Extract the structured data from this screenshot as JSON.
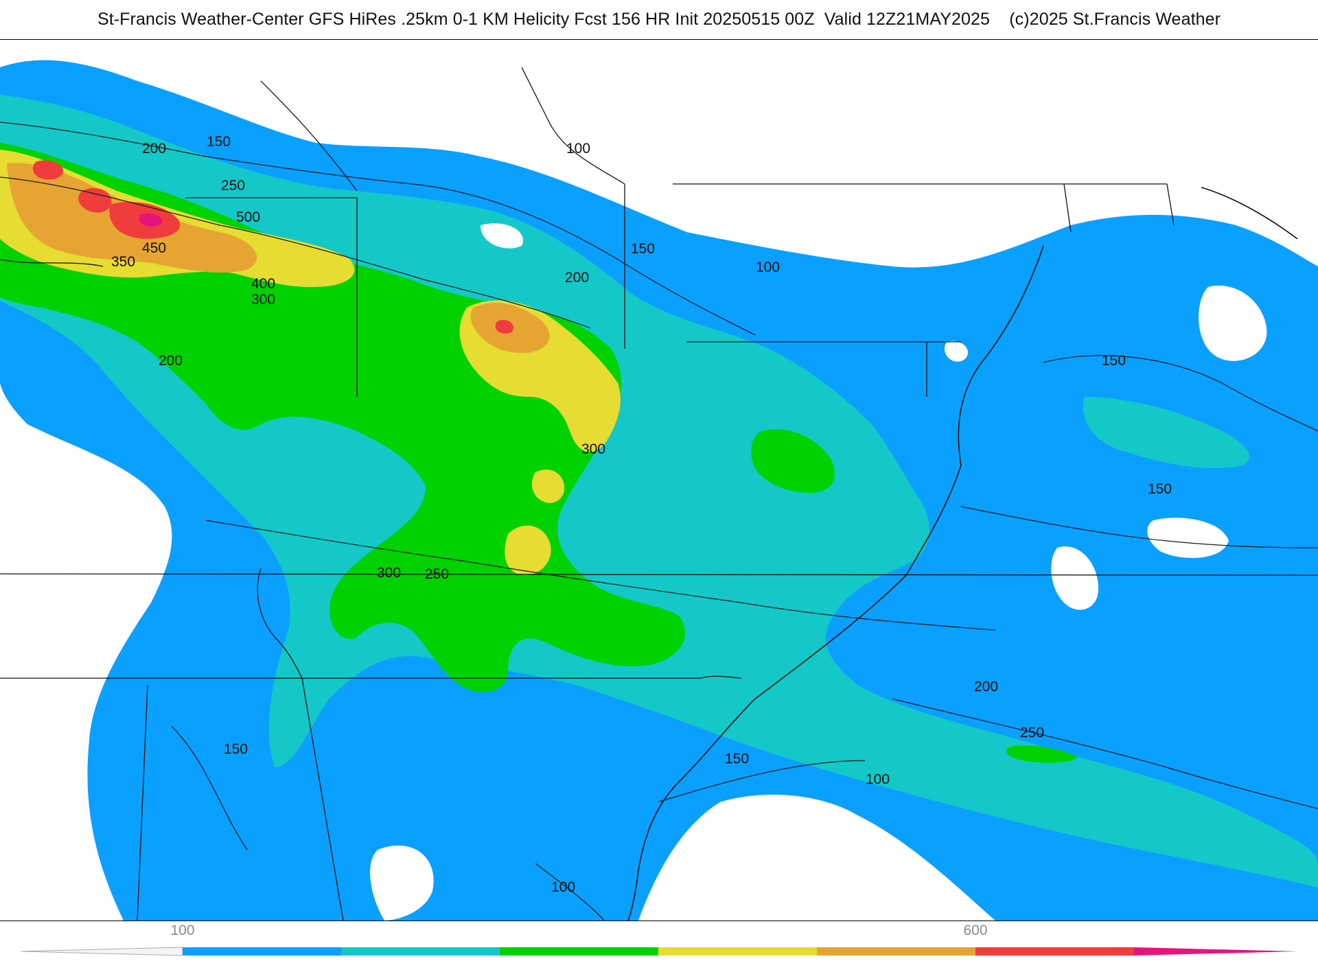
{
  "title": "St-Francis Weather-Center GFS HiRes .25km 0-1 KM Helicity Fcst 156 HR Init 20250515 00Z  Valid 12Z21MAY2025    (c)2025 St.Francis Weather",
  "legend": {
    "ticks": [
      "100",
      "600"
    ],
    "colors": [
      "#0aa0ff",
      "#14c8c8",
      "#00d200",
      "#e6dc32",
      "#e6a532",
      "#f03c3c",
      "#e6147d"
    ],
    "range": [
      100,
      600
    ]
  },
  "contour_labels": [
    {
      "id": "l-200-nw",
      "text": "200"
    },
    {
      "id": "l-150-nw",
      "text": "150"
    },
    {
      "id": "l-100-north",
      "text": "100"
    },
    {
      "id": "l-250-nw",
      "text": "250"
    },
    {
      "id": "l-500",
      "text": "500"
    },
    {
      "id": "l-450",
      "text": "450"
    },
    {
      "id": "l-350",
      "text": "350"
    },
    {
      "id": "l-400",
      "text": "400"
    },
    {
      "id": "l-300-nw",
      "text": "300"
    },
    {
      "id": "l-200-west",
      "text": "200"
    },
    {
      "id": "l-150-central",
      "text": "150"
    },
    {
      "id": "l-200-central",
      "text": "200"
    },
    {
      "id": "l-100-ne",
      "text": "100"
    },
    {
      "id": "l-150-atl",
      "text": "150"
    },
    {
      "id": "l-150-atl2",
      "text": "150"
    },
    {
      "id": "l-300-center",
      "text": "300"
    },
    {
      "id": "l-300-south",
      "text": "300"
    },
    {
      "id": "l-250-south",
      "text": "250"
    },
    {
      "id": "l-200-coast",
      "text": "200"
    },
    {
      "id": "l-250-atl",
      "text": "250"
    },
    {
      "id": "l-150-se",
      "text": "150"
    },
    {
      "id": "l-100-gulfstream",
      "text": "100"
    },
    {
      "id": "l-150-sw",
      "text": "150"
    },
    {
      "id": "l-100-south",
      "text": "100"
    }
  ]
}
